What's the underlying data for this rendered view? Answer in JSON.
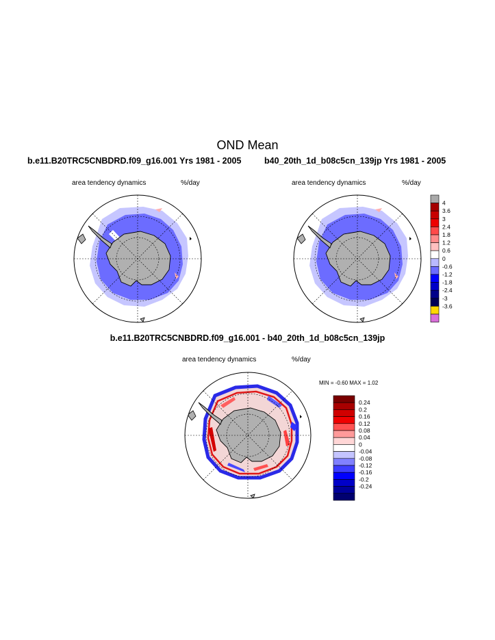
{
  "title": "OND Mean",
  "panels": {
    "left": {
      "run_title": "b.e11.B20TRC5CNBDRD.f09_g16.001  Yrs 1981 - 2005",
      "variable": "area tendency dynamics",
      "units": "%/day"
    },
    "right": {
      "run_title": "b40_20th_1d_b08c5cn_139jp  Yrs 1981 - 2005",
      "variable": "area tendency dynamics",
      "units": "%/day"
    },
    "diff": {
      "run_title": "b.e11.B20TRC5CNBDRD.f09_g16.001 - b40_20th_1d_b08c5cn_139jp",
      "variable": "area tendency dynamics",
      "units": "%/day",
      "minmax": "MIN =  -0.60 MAX =   1.02"
    }
  },
  "colorbars": {
    "main": {
      "labels": [
        "4",
        "3.6",
        "3",
        "2.4",
        "1.8",
        "1.2",
        "0.6",
        "0",
        "-0.6",
        "-1.2",
        "-1.8",
        "-2.4",
        "-3",
        "-3.6"
      ],
      "colors": [
        "#a9a9a9",
        "#a50000",
        "#c80000",
        "#ee0000",
        "#ff4a4a",
        "#ff8a8a",
        "#ffc0c0",
        "#ffffff",
        "#b9b9ff",
        "#6a6aff",
        "#0000ff",
        "#0000c8",
        "#00008a",
        "#000055",
        "#ffd700",
        "#d86fd8"
      ]
    },
    "diff": {
      "labels": [
        "0.24",
        "0.2",
        "0.16",
        "0.12",
        "0.08",
        "0.04",
        "0",
        "-0.04",
        "-0.08",
        "-0.12",
        "-0.16",
        "-0.2",
        "-0.24"
      ],
      "colors": [
        "#7a0000",
        "#a80000",
        "#d00000",
        "#f00000",
        "#ff5252",
        "#ff9a9a",
        "#ffd6d6",
        "#ffffff",
        "#c4c4ff",
        "#8080ff",
        "#3c3cff",
        "#0000ff",
        "#0000c8",
        "#00009a",
        "#000070"
      ]
    }
  }
}
